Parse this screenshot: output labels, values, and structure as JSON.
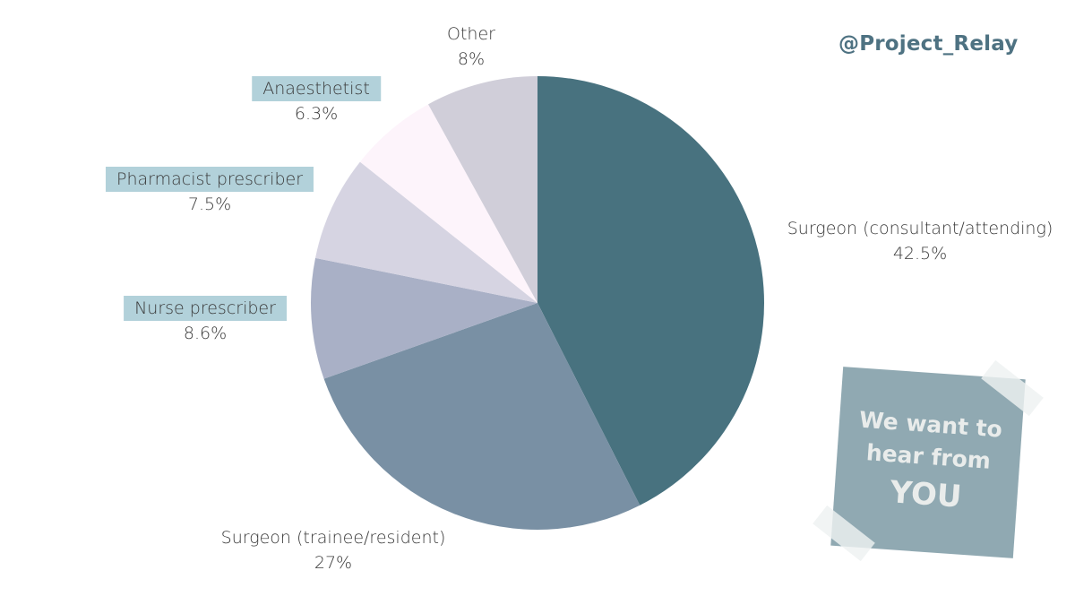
{
  "chart_data": {
    "type": "pie",
    "title": "",
    "slices": [
      {
        "label": "Surgeon (consultant/attending)",
        "value": 42.5,
        "value_label": "42.5%",
        "color": "#48727f",
        "label_boxed": false
      },
      {
        "label": "Surgeon (trainee/resident)",
        "value": 27,
        "value_label": "27%",
        "color": "#7990a4",
        "label_boxed": false
      },
      {
        "label": "Nurse prescriber",
        "value": 8.6,
        "value_label": "8.6%",
        "color": "#a9b0c6",
        "label_boxed": true
      },
      {
        "label": "Pharmacist prescriber",
        "value": 7.5,
        "value_label": "7.5%",
        "color": "#d6d4e2",
        "label_boxed": true
      },
      {
        "label": "Anaesthetist",
        "value": 6.3,
        "value_label": "6.3%",
        "color": "#fdf4fb",
        "label_boxed": true
      },
      {
        "label": "Other",
        "value": 8,
        "value_label": "8%",
        "color": "#d0ced9",
        "label_boxed": false
      }
    ],
    "start": "12 o'clock",
    "direction": "clockwise",
    "label_box_color": "#b2d1da"
  },
  "handle": "@Project_Relay",
  "note": {
    "lines": [
      "We want to",
      "hear from",
      "YOU"
    ]
  }
}
